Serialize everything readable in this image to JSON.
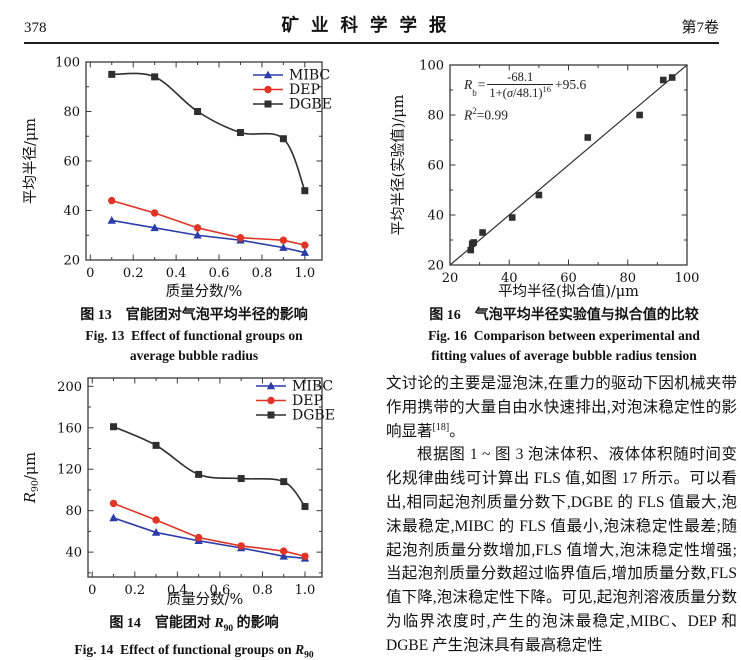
{
  "header": {
    "page_number": "378",
    "journal_title": "矿业科学学报",
    "volume": "第7卷"
  },
  "figure13": {
    "caption_zh": "图 13　官能团对气泡平均半径的影响",
    "caption_en_line1": "Fig. 13  Effect of functional groups on",
    "caption_en_line2": "average bubble radius"
  },
  "figure16": {
    "caption_zh": "图 16　气泡平均半径实验值与拟合值的比较",
    "caption_en_line1": "Fig. 16  Comparison between experimental and",
    "caption_en_line2": "fitting values of average bubble radius tension",
    "formula": {
      "lhs_base": "R",
      "lhs_sub": "b",
      "eq": "=",
      "num": "-68.1",
      "den_pre": "1+(",
      "den_sigma": "σ",
      "den_post": "/48.1)",
      "den_exp": "16",
      "tail": "+95.6",
      "r2_base": "R",
      "r2_exp": "2",
      "r2_val": "=0.99"
    }
  },
  "figure14": {
    "caption_zh_pre": "图 14　官能团对 ",
    "caption_sym": "R",
    "caption_sub": "90",
    "caption_zh_post": " 的影响",
    "caption_en_pre": "Fig. 14  Effect of functional groups on ",
    "caption_en_sym": "R",
    "caption_en_sub": "90"
  },
  "article": {
    "para1_pre": "文讨论的主要是湿泡沫,在重力的驱动下因机械夹带作用携带的大量自由水快速排出,对泡沫稳定性的影响显著",
    "para1_sup": "[18]",
    "para1_post": "。",
    "para2": "根据图 1 ~ 图 3 泡沫体积、液体体积随时间变化规律曲线可计算出 FLS 值,如图 17 所示。可以看出,相同起泡剂质量分数下,DGBE 的 FLS 值最大,泡沫最稳定,MIBC 的 FLS 值最小,泡沫稳定性最差;随起泡剂质量分数增加,FLS 值增大,泡沫稳定性增强;当起泡剂质量分数超过临界值后,增加质量分数,FLS 值下降,泡沫稳定性下降。可见,起泡剂溶液质量分数为临界浓度时,产生的泡沫最稳定,MIBC、DEP 和 DGBE 产生泡沫具有最高稳定性"
  },
  "chart_data": [
    {
      "id": "fig13",
      "type": "line",
      "xlabel": "质量分数/%",
      "ylabel": "平均半径/μm",
      "xlim": [
        -0.02,
        1.08
      ],
      "ylim": [
        20,
        100
      ],
      "xticks": [
        0,
        0.2,
        0.4,
        0.6,
        0.8,
        1.0
      ],
      "xtick_labels": [
        "0",
        "0.2",
        "0.4",
        "0.6",
        "0.8",
        "1.0"
      ],
      "yticks": [
        20,
        40,
        60,
        80,
        100
      ],
      "ytick_labels": [
        "20",
        "40",
        "60",
        "80",
        "100"
      ],
      "xminor": [
        0.1,
        0.3,
        0.5,
        0.7,
        0.9
      ],
      "yminor": [
        30,
        50,
        70,
        90
      ],
      "grid": false,
      "legend_position": "top-right",
      "x": [
        0.1,
        0.3,
        0.5,
        0.7,
        0.9,
        1.0
      ],
      "series": [
        {
          "name": "MIBC",
          "marker": "triangle",
          "color": "#2b3da8",
          "values": [
            36,
            33,
            30,
            28,
            25,
            23
          ]
        },
        {
          "name": "DEP",
          "marker": "circle",
          "color": "#e03426",
          "values": [
            44,
            39,
            33,
            29,
            28,
            26
          ]
        },
        {
          "name": "DGBE",
          "marker": "square",
          "color": "#2f2f2f",
          "smooth": true,
          "values": [
            95,
            94,
            80,
            71.5,
            69,
            48
          ]
        }
      ]
    },
    {
      "id": "fig16",
      "type": "scatter",
      "xlabel": "平均半径(拟合值)/μm",
      "ylabel": "平均半径(实验值)/μm",
      "xlim": [
        20,
        100
      ],
      "ylim": [
        20,
        100
      ],
      "xticks": [
        20,
        40,
        60,
        80,
        100
      ],
      "xtick_labels": [
        "20",
        "40",
        "60",
        "80",
        "100"
      ],
      "yticks": [
        20,
        40,
        60,
        80,
        100
      ],
      "ytick_labels": [
        "20",
        "40",
        "60",
        "80",
        "100"
      ],
      "xminor": [
        30,
        50,
        70,
        90
      ],
      "yminor": [
        30,
        50,
        70,
        90
      ],
      "grid": false,
      "marker_color": "#2f2f2f",
      "points": [
        [
          27,
          26
        ],
        [
          27.5,
          28.5
        ],
        [
          28,
          29
        ],
        [
          31,
          33
        ],
        [
          41,
          39
        ],
        [
          50,
          48
        ],
        [
          66.5,
          71
        ],
        [
          84,
          80
        ],
        [
          92,
          94
        ],
        [
          95,
          95
        ]
      ],
      "fit_line": [
        [
          20,
          20
        ],
        [
          100,
          100
        ]
      ],
      "fit_equation": "Rb = -68.1/(1+(σ/48.1)^16)+95.6",
      "r_squared": 0.99
    },
    {
      "id": "fig14",
      "type": "line",
      "xlabel": "质量分数/%",
      "ylabel_parts": [
        {
          "t": "R",
          "it": true
        },
        {
          "t": "90",
          "sub": true
        },
        {
          "t": "/μm"
        }
      ],
      "xlim": [
        -0.02,
        1.08
      ],
      "ylim": [
        16,
        208
      ],
      "xticks": [
        0,
        0.2,
        0.4,
        0.6,
        0.8,
        1.0
      ],
      "xtick_labels": [
        "0",
        "0.2",
        "0.4",
        "0.6",
        "0.8",
        "1.0"
      ],
      "yticks": [
        40,
        80,
        120,
        160,
        200
      ],
      "ytick_labels": [
        "40",
        "80",
        "120",
        "160",
        "200"
      ],
      "xminor": [
        0.1,
        0.3,
        0.5,
        0.7,
        0.9
      ],
      "yminor": [
        20,
        60,
        100,
        140,
        180
      ],
      "grid": false,
      "legend_position": "top-right",
      "x": [
        0.1,
        0.3,
        0.5,
        0.7,
        0.9,
        1.0
      ],
      "series": [
        {
          "name": "MIBC",
          "marker": "triangle",
          "color": "#2b3da8",
          "values": [
            73,
            59,
            51,
            44,
            36,
            34
          ]
        },
        {
          "name": "DEP",
          "marker": "circle",
          "color": "#e03426",
          "values": [
            87,
            71,
            54,
            46,
            41,
            36
          ]
        },
        {
          "name": "DGBE",
          "marker": "square",
          "color": "#2f2f2f",
          "smooth": true,
          "values": [
            161,
            143,
            115,
            111,
            108,
            84
          ]
        }
      ]
    }
  ]
}
